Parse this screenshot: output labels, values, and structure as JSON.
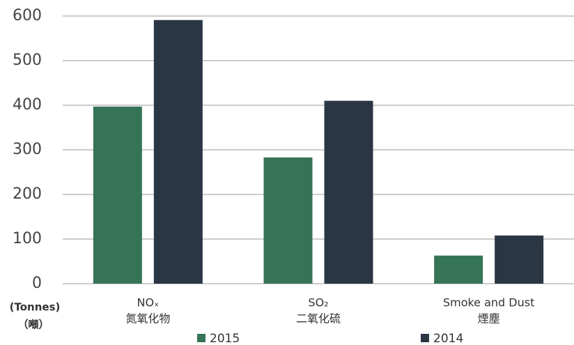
{
  "chart_data": {
    "type": "bar",
    "categories": [
      "NOₓ",
      "SO₂",
      "Smoke and Dust"
    ],
    "category_subtitles": [
      "氮氧化物",
      "二氧化硫",
      "煙塵"
    ],
    "y_label": "(Tonnes)",
    "y_label_zh": "（噸）",
    "series": [
      {
        "name": "2015",
        "color": "#367457",
        "values": [
          397,
          283,
          63
        ]
      },
      {
        "name": "2014",
        "color": "#2b3644",
        "values": [
          591,
          410,
          108
        ]
      }
    ],
    "ylim": [
      0,
      600
    ],
    "yticks": [
      0,
      100,
      200,
      300,
      400,
      500,
      600
    ],
    "grid": true
  }
}
